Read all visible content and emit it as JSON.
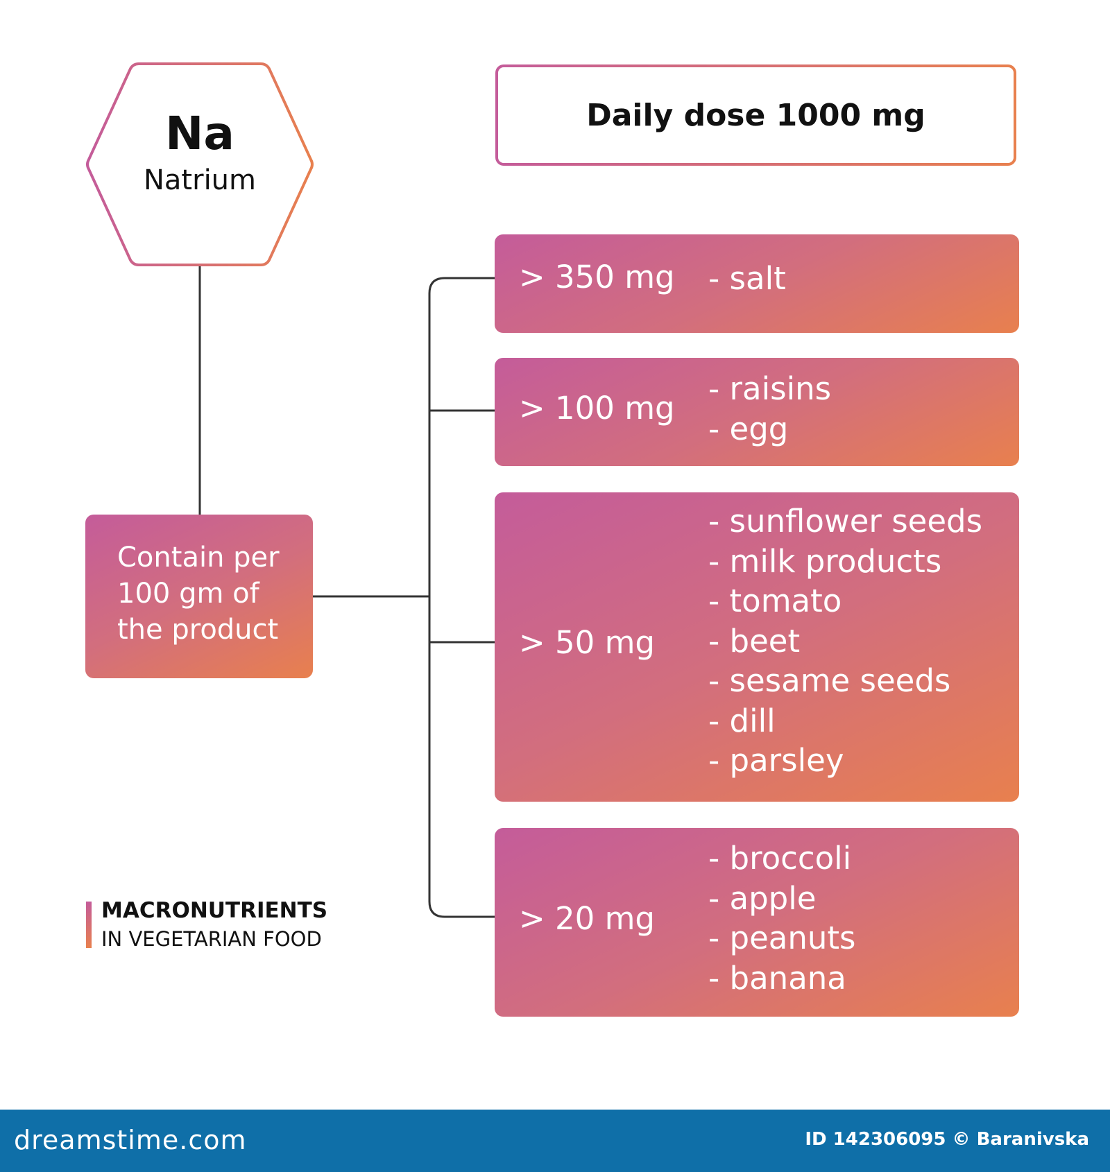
{
  "element": {
    "symbol": "Na",
    "name": "Natrium"
  },
  "daily_dose": "Daily dose 1000 mg",
  "contain_label": [
    "Contain per",
    "100 gm of",
    "the product"
  ],
  "ranges": [
    {
      "label": "> 350 mg",
      "foods": [
        "- salt"
      ]
    },
    {
      "label": "> 100 mg",
      "foods": [
        "- raisins",
        "- egg"
      ]
    },
    {
      "label": "> 50 mg",
      "foods": [
        "- sunflower seeds",
        "- milk products",
        "- tomato",
        "- beet",
        "- sesame seeds",
        "- dill",
        "- parsley"
      ]
    },
    {
      "label": "> 20 mg",
      "foods": [
        "- broccoli",
        "- apple",
        "- peanuts",
        "- banana"
      ]
    }
  ],
  "legend": {
    "title": "MACRONUTRIENTS",
    "subtitle": "IN VEGETARIAN FOOD"
  },
  "footer": {
    "site": "dreamstime.com",
    "id": "ID 142306095 © Baranivska"
  },
  "colors": {
    "gradient_start": "#c45c9a",
    "gradient_end": "#e8804e",
    "connector": "#333333",
    "footer_bg": "#0f6fa8"
  }
}
